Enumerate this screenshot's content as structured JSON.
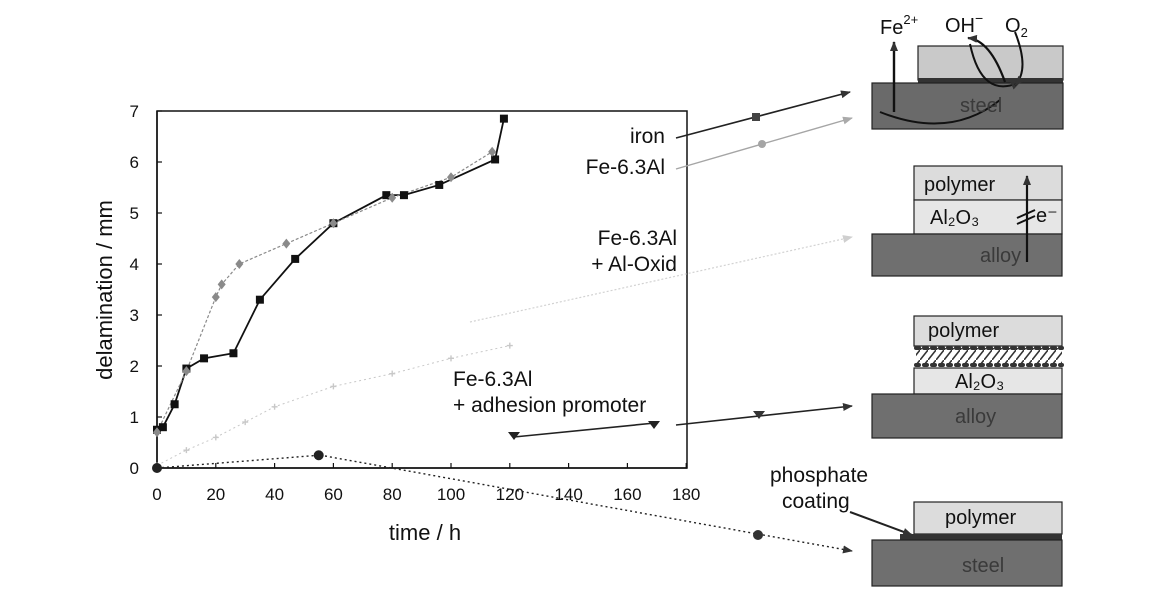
{
  "chart_data": {
    "type": "line",
    "xlabel": "time / h",
    "ylabel": "delamination / mm",
    "xlim": [
      0,
      180
    ],
    "ylim": [
      0,
      7
    ],
    "x_ticks": [
      0,
      20,
      40,
      60,
      80,
      100,
      120,
      140,
      160,
      180
    ],
    "y_ticks": [
      0,
      1,
      2,
      3,
      4,
      5,
      6,
      7
    ],
    "grid": false,
    "series": [
      {
        "name": "iron",
        "color": "#111111",
        "marker": "square",
        "points": [
          [
            0,
            0.75
          ],
          [
            2,
            0.8
          ],
          [
            6,
            1.25
          ],
          [
            10,
            1.95
          ],
          [
            16,
            2.15
          ],
          [
            26,
            2.25
          ],
          [
            35,
            3.3
          ],
          [
            47,
            4.1
          ],
          [
            60,
            4.8
          ],
          [
            78,
            5.35
          ],
          [
            84,
            5.35
          ],
          [
            96,
            5.55
          ],
          [
            115,
            6.05
          ],
          [
            118,
            6.85
          ]
        ]
      },
      {
        "name": "Fe-6.3Al",
        "color": "#8a8a8a",
        "marker": "diamond",
        "points": [
          [
            0,
            0.7
          ],
          [
            10,
            1.9
          ],
          [
            20,
            3.35
          ],
          [
            22,
            3.6
          ],
          [
            28,
            4.0
          ],
          [
            44,
            4.4
          ],
          [
            60,
            4.8
          ],
          [
            80,
            5.3
          ],
          [
            100,
            5.7
          ],
          [
            114,
            6.2
          ]
        ]
      },
      {
        "name": "Fe-6.3Al + Al-Oxid",
        "color": "#c8c8c8",
        "marker": "cross",
        "points": [
          [
            0,
            0.05
          ],
          [
            10,
            0.35
          ],
          [
            20,
            0.6
          ],
          [
            30,
            0.9
          ],
          [
            40,
            1.2
          ],
          [
            60,
            1.6
          ],
          [
            80,
            1.85
          ],
          [
            100,
            2.15
          ],
          [
            120,
            2.4
          ]
        ]
      },
      {
        "name": "Fe-6.3Al + adhesion promoter",
        "color": "#222222",
        "marker": "circle",
        "points": [
          [
            0,
            0.0
          ],
          [
            55,
            0.25
          ]
        ]
      }
    ],
    "annotations": [
      "iron",
      "Fe-6.3Al",
      "Fe-6.3Al",
      "+ Al-Oxid",
      "Fe-6.3Al",
      "+ adhesion promoter",
      "phosphate",
      "coating"
    ]
  },
  "schematics": {
    "iron": {
      "ion": "Fe",
      "ion_charge": "2+",
      "hydroxide": "OH",
      "hydroxide_charge": "−",
      "oxygen": "O",
      "oxygen_sub": "2",
      "substrate": "steel"
    },
    "oxide": {
      "top": "polymer",
      "middle": "Al₂O₃",
      "electron": "e⁻",
      "substrate": "alloy"
    },
    "promoter": {
      "top": "polymer",
      "middle": "Al₂O₃",
      "substrate": "alloy"
    },
    "phosphate": {
      "top": "polymer",
      "substrate": "steel"
    }
  }
}
